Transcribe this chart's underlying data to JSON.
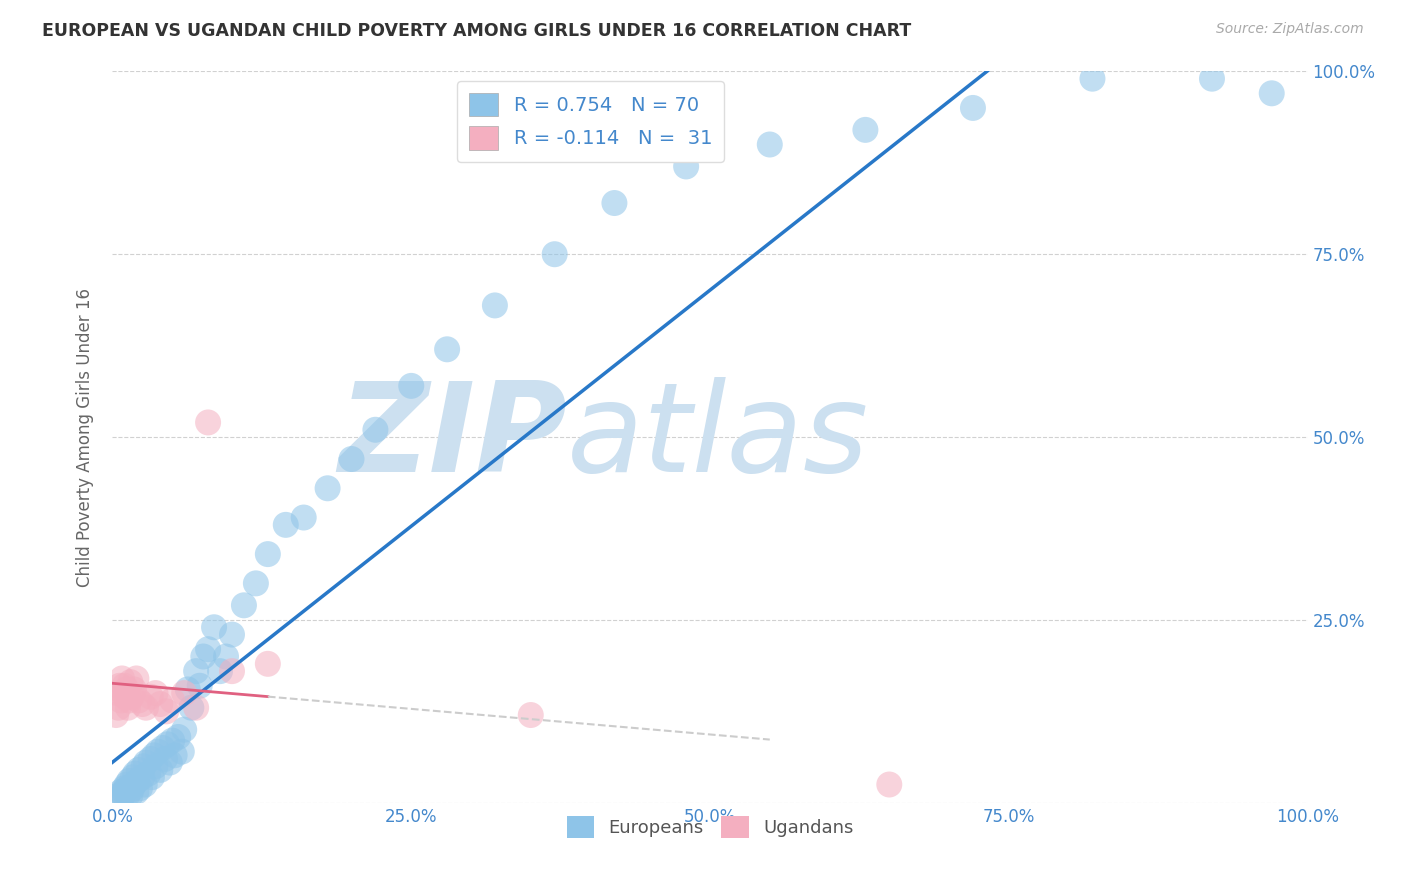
{
  "title": "EUROPEAN VS UGANDAN CHILD POVERTY AMONG GIRLS UNDER 16 CORRELATION CHART",
  "source": "Source: ZipAtlas.com",
  "ylabel": "Child Poverty Among Girls Under 16",
  "xlim": [
    0,
    1
  ],
  "ylim": [
    0,
    1
  ],
  "xticks": [
    0,
    0.25,
    0.5,
    0.75,
    1.0
  ],
  "yticks": [
    0,
    0.25,
    0.5,
    0.75,
    1.0
  ],
  "xticklabels": [
    "0.0%",
    "25.0%",
    "50.0%",
    "75.0%",
    "100.0%"
  ],
  "yticklabels_right": [
    "",
    "25.0%",
    "50.0%",
    "75.0%",
    "100.0%"
  ],
  "european_R": 0.754,
  "european_N": 70,
  "ugandan_R": -0.114,
  "ugandan_N": 31,
  "blue_color": "#8ec4e8",
  "pink_color": "#f4afc0",
  "blue_line_color": "#2878c8",
  "pink_solid_color": "#e06080",
  "pink_dash_color": "#cccccc",
  "watermark": "ZIPatlas",
  "watermark_color": "#cce0f0",
  "legend_label_european": "Europeans",
  "legend_label_ugandan": "Ugandans",
  "axis_tick_color": "#4488cc",
  "title_color": "#333333",
  "source_color": "#aaaaaa",
  "european_x": [
    0.005,
    0.007,
    0.008,
    0.009,
    0.01,
    0.01,
    0.011,
    0.012,
    0.013,
    0.014,
    0.015,
    0.015,
    0.016,
    0.017,
    0.018,
    0.019,
    0.02,
    0.021,
    0.022,
    0.023,
    0.025,
    0.026,
    0.027,
    0.028,
    0.03,
    0.032,
    0.033,
    0.035,
    0.036,
    0.038,
    0.04,
    0.042,
    0.044,
    0.046,
    0.048,
    0.05,
    0.052,
    0.055,
    0.058,
    0.06,
    0.063,
    0.066,
    0.07,
    0.073,
    0.076,
    0.08,
    0.085,
    0.09,
    0.095,
    0.1,
    0.11,
    0.12,
    0.13,
    0.145,
    0.16,
    0.18,
    0.2,
    0.22,
    0.25,
    0.28,
    0.32,
    0.37,
    0.42,
    0.48,
    0.55,
    0.63,
    0.72,
    0.82,
    0.92,
    0.97
  ],
  "european_y": [
    0.01,
    0.015,
    0.008,
    0.012,
    0.02,
    0.015,
    0.018,
    0.025,
    0.012,
    0.03,
    0.01,
    0.022,
    0.018,
    0.035,
    0.025,
    0.04,
    0.015,
    0.03,
    0.045,
    0.02,
    0.035,
    0.05,
    0.025,
    0.055,
    0.04,
    0.06,
    0.035,
    0.065,
    0.05,
    0.07,
    0.045,
    0.075,
    0.06,
    0.08,
    0.055,
    0.085,
    0.065,
    0.09,
    0.07,
    0.1,
    0.155,
    0.13,
    0.18,
    0.16,
    0.2,
    0.21,
    0.24,
    0.18,
    0.2,
    0.23,
    0.27,
    0.3,
    0.34,
    0.38,
    0.39,
    0.43,
    0.47,
    0.51,
    0.57,
    0.62,
    0.68,
    0.75,
    0.82,
    0.87,
    0.9,
    0.92,
    0.95,
    0.99,
    0.99,
    0.97
  ],
  "ugandan_x": [
    0.003,
    0.004,
    0.005,
    0.006,
    0.007,
    0.008,
    0.009,
    0.01,
    0.011,
    0.012,
    0.013,
    0.014,
    0.015,
    0.016,
    0.018,
    0.02,
    0.022,
    0.025,
    0.028,
    0.032,
    0.036,
    0.04,
    0.045,
    0.05,
    0.06,
    0.07,
    0.08,
    0.1,
    0.13,
    0.35,
    0.65
  ],
  "ugandan_y": [
    0.12,
    0.15,
    0.13,
    0.16,
    0.14,
    0.17,
    0.15,
    0.16,
    0.145,
    0.155,
    0.13,
    0.14,
    0.165,
    0.145,
    0.155,
    0.17,
    0.14,
    0.135,
    0.13,
    0.145,
    0.15,
    0.135,
    0.125,
    0.14,
    0.15,
    0.13,
    0.52,
    0.18,
    0.19,
    0.12,
    0.025
  ]
}
